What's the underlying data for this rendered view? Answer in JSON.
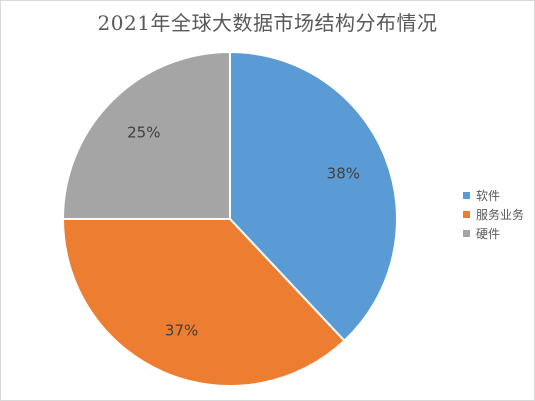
{
  "chart_data": {
    "type": "pie",
    "title": "2021年全球大数据市场结构分布情况",
    "categories": [
      "软件",
      "服务业务",
      "硬件"
    ],
    "values": [
      38,
      37,
      25
    ],
    "labels": [
      "38%",
      "37%",
      "25%"
    ],
    "colors": [
      "#5b9bd5",
      "#ed7d31",
      "#a5a5a5"
    ],
    "start_angle_deg": 0,
    "direction": "clockwise",
    "legend_position": "right"
  }
}
